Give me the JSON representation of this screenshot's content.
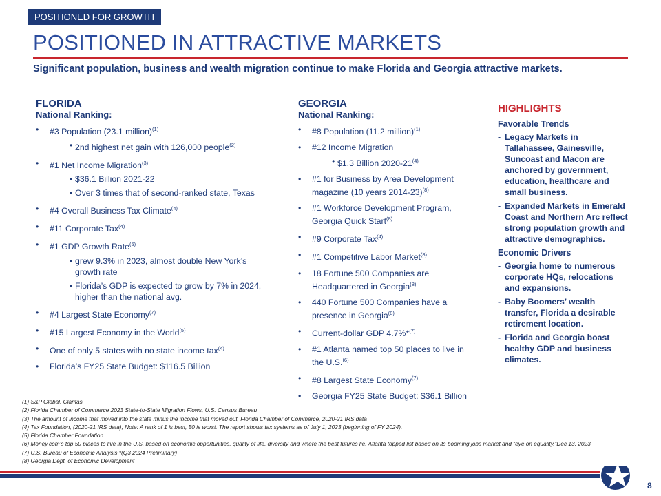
{
  "tag": "POSITIONED FOR GROWTH",
  "title": "POSITIONED IN ATTRACTIVE MARKETS",
  "subtitle": "Significant population, business and wealth migration continue to make Florida and Georgia attractive markets.",
  "florida": {
    "heading": "FLORIDA",
    "subheading": "National Ranking:",
    "items": [
      {
        "text": "#3 Population (23.1 million)",
        "note": "(1)",
        "subitems": [
          {
            "text": "2nd highest net gain with 126,000 people",
            "note": "(2)"
          }
        ]
      },
      {
        "text": "#1 Net Income Migration",
        "note": "(3)",
        "subitems": [
          {
            "text": "$36.1 Billion 2021-22"
          },
          {
            "text": "Over 3 times that of second-ranked state, Texas"
          }
        ]
      },
      {
        "text": "#4 Overall Business Tax Climate",
        "note": "(4)"
      },
      {
        "text": "#11 Corporate Tax",
        "note": "(4)"
      },
      {
        "text": "#1 GDP Growth Rate",
        "note": "(5)",
        "subitems": [
          {
            "text": "grew 9.3% in 2023, almost double New York’s growth rate"
          },
          {
            "text": "Florida’s GDP is expected to grow by 7% in 2024, higher than the national avg."
          }
        ]
      },
      {
        "text": "#4 Largest State Economy",
        "note": "(7)"
      },
      {
        "text": "#15 Largest Economy in the World",
        "note": "(5)"
      },
      {
        "text": "One of only 5 states with no state income tax",
        "note": "(4)"
      },
      {
        "text": "Florida’s FY25 State Budget: $116.5 Billion"
      }
    ]
  },
  "georgia": {
    "heading": "GEORGIA",
    "subheading": "National Ranking:",
    "items": [
      {
        "text": "#8 Population (11.2 million)",
        "note": "(1)"
      },
      {
        "text": "#12 Income Migration",
        "subitems": [
          {
            "text": "$1.3 Billion 2020-21",
            "note": "(4)"
          }
        ]
      },
      {
        "text": "#1 for Business by Area Development magazine (10 years 2014-23)",
        "note": "(8)"
      },
      {
        "text": "#1 Workforce Development Program, Georgia Quick Start",
        "note": "(8)"
      },
      {
        "text": "#9 Corporate Tax",
        "note": "(4)"
      },
      {
        "text": "#1 Competitive Labor Market",
        "note": "(8)"
      },
      {
        "text": "18 Fortune 500 Companies are Headquartered in Georgia",
        "note": "(8)"
      },
      {
        "text": "440 Fortune 500 Companies have a presence in Georgia",
        "note": "(8)"
      },
      {
        "text": "Current-dollar GDP 4.7%*",
        "note": "(7)"
      },
      {
        "text": "#1 Atlanta named top 50 places to live in the U.S.",
        "note": "(6)"
      },
      {
        "text": "#8 Largest State Economy",
        "note": "(7)"
      },
      {
        "text": "Georgia FY25 State Budget: $36.1 Billion"
      }
    ]
  },
  "highlights": {
    "heading": "HIGHLIGHTS",
    "sections": [
      {
        "heading": "Favorable Trends",
        "items": [
          "Legacy Markets in Tallahassee, Gainesville, Suncoast and Macon are anchored by government, education, healthcare and small business.",
          "Expanded Markets in Emerald Coast and Northern Arc reflect strong population growth and attractive demographics."
        ]
      },
      {
        "heading": "Economic Drivers",
        "items": [
          "Georgia home to numerous corporate HQs, relocations and expansions.",
          "Baby Boomers’ wealth transfer, Florida a desirable retirement location.",
          "Florida and Georgia boast healthy GDP and business climates."
        ]
      }
    ]
  },
  "footnotes": [
    "(1) S&P Global, Claritas",
    "(2) Florida Chamber of Commerce 2023 State-to-State Migration Flows, U.S. Census Bureau",
    "(3) The amount of income that moved into the state minus the income that moved out, Florida Chamber of Commerce, 2020-21 IRS data",
    "(4) Tax Foundation, (2020-21 IRS data), Note: A rank of 1 is best, 50 is worst. The report shows tax systems as of July 1, 2023 (beginning of FY 2024).",
    "(5) Florida Chamber Foundation",
    "(6) Money.com’s top 50 places to live in the U.S. based on economic opportunities, quality of life, diversity and where the best futures lie. Atlanta topped list based on its booming jobs market and “eye on equality.”Dec 13, 2023",
    "(7) U.S. Bureau of Economic Analysis *(Q3 2024 Preliminary)",
    "(8) Georgia Dept. of Economic Development"
  ],
  "page_number": "8"
}
